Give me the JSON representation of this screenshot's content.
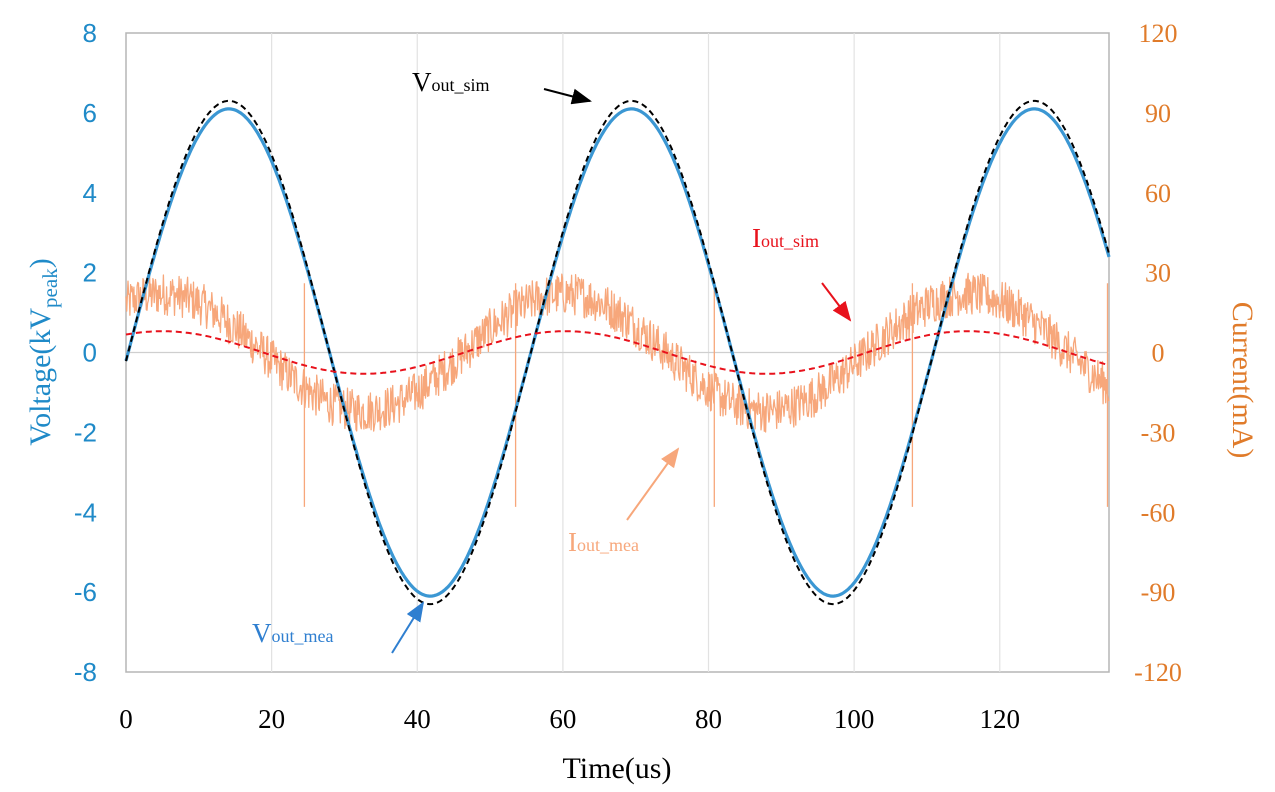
{
  "chart_data": {
    "type": "line",
    "title": "",
    "xlabel": "Time(us)",
    "ylabel_left": {
      "main": "Voltage(kV",
      "sub": "peak",
      "close": ")"
    },
    "ylabel_right": "Current(mA)",
    "xlim": [
      0,
      135
    ],
    "ylim_left": [
      -8,
      8
    ],
    "ylim_right": [
      -120,
      120
    ],
    "x_ticks": [
      0,
      20,
      40,
      60,
      80,
      100,
      120
    ],
    "y_left_ticks": [
      -8,
      -6,
      -4,
      -2,
      0,
      2,
      4,
      6,
      8
    ],
    "y_right_ticks": [
      -120,
      -90,
      -60,
      -30,
      0,
      30,
      60,
      90,
      120
    ],
    "grid": "vertical",
    "series": [
      {
        "name": "Vout_mea",
        "axis": "left",
        "style": "solid",
        "color": "#3B97D3",
        "amplitude": 6.1,
        "period": 55.3,
        "phase_shift": 0.3,
        "unit": "kV"
      },
      {
        "name": "Vout_sim",
        "axis": "left",
        "style": "dashed",
        "color": "#000000",
        "amplitude": 6.3,
        "period": 55.3,
        "phase_shift": 0.3,
        "unit": "kV"
      },
      {
        "name": "Iout_mea",
        "axis": "right",
        "style": "noisy",
        "color": "#F7A77B",
        "amplitude": 22,
        "noise": 8,
        "period": 55.3,
        "phase_shift": 0.3,
        "spike_x": [
          24.5,
          53.5,
          80.8,
          108.0,
          134.8
        ],
        "unit": "mA"
      },
      {
        "name": "Iout_sim",
        "axis": "right",
        "style": "dashed",
        "color": "#E8121C",
        "amplitude": 8,
        "period": 55.3,
        "phase_shift": 0.3,
        "unit": "mA"
      }
    ],
    "annotations": [
      {
        "main": "V",
        "sub": "out_sim",
        "color": "#000000",
        "arrow_to": [
          67,
          6.3
        ]
      },
      {
        "main": "I",
        "sub": "out_sim",
        "color": "#E8121C",
        "arrow_to": [
          99,
          0.5
        ]
      },
      {
        "main": "I",
        "sub": "out_mea",
        "color": "#F7A77B",
        "arrow_to": [
          75.5,
          -2.3
        ]
      },
      {
        "main": "V",
        "sub": "out_mea",
        "color": "#2F7FD0",
        "arrow_to": [
          40,
          -6.1
        ]
      }
    ]
  }
}
